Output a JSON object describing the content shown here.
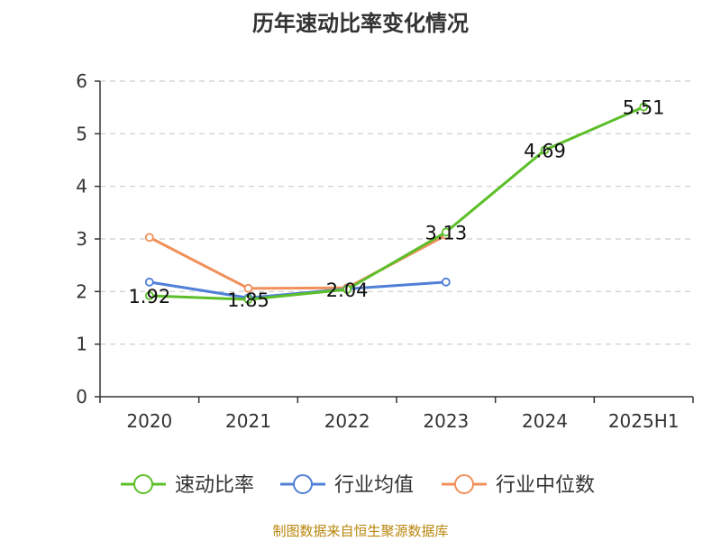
{
  "chart_data": {
    "type": "line",
    "title": "历年速动比率变化情况",
    "categories": [
      "2020",
      "2021",
      "2022",
      "2023",
      "2024",
      "2025H1"
    ],
    "ylim": [
      0,
      6
    ],
    "yticks": [
      "0",
      "1",
      "2",
      "3",
      "4",
      "5",
      "6"
    ],
    "grid": true,
    "legend_position": "bottom",
    "series": [
      {
        "name": "速动比率",
        "color": "#5cbf2a",
        "values": [
          1.92,
          1.85,
          2.04,
          3.13,
          4.69,
          5.51
        ],
        "labels": [
          "1.92",
          "1.85",
          "2.04",
          "3.13",
          "4.69",
          "5.51"
        ]
      },
      {
        "name": "行业均值",
        "color": "#4f7fd6",
        "values": [
          2.18,
          1.88,
          2.05,
          2.18,
          null,
          null
        ]
      },
      {
        "name": "行业中位数",
        "color": "#f0905a",
        "values": [
          3.03,
          2.06,
          2.07,
          3.07,
          null,
          null
        ]
      }
    ]
  },
  "source": "制图数据来自恒生聚源数据库"
}
